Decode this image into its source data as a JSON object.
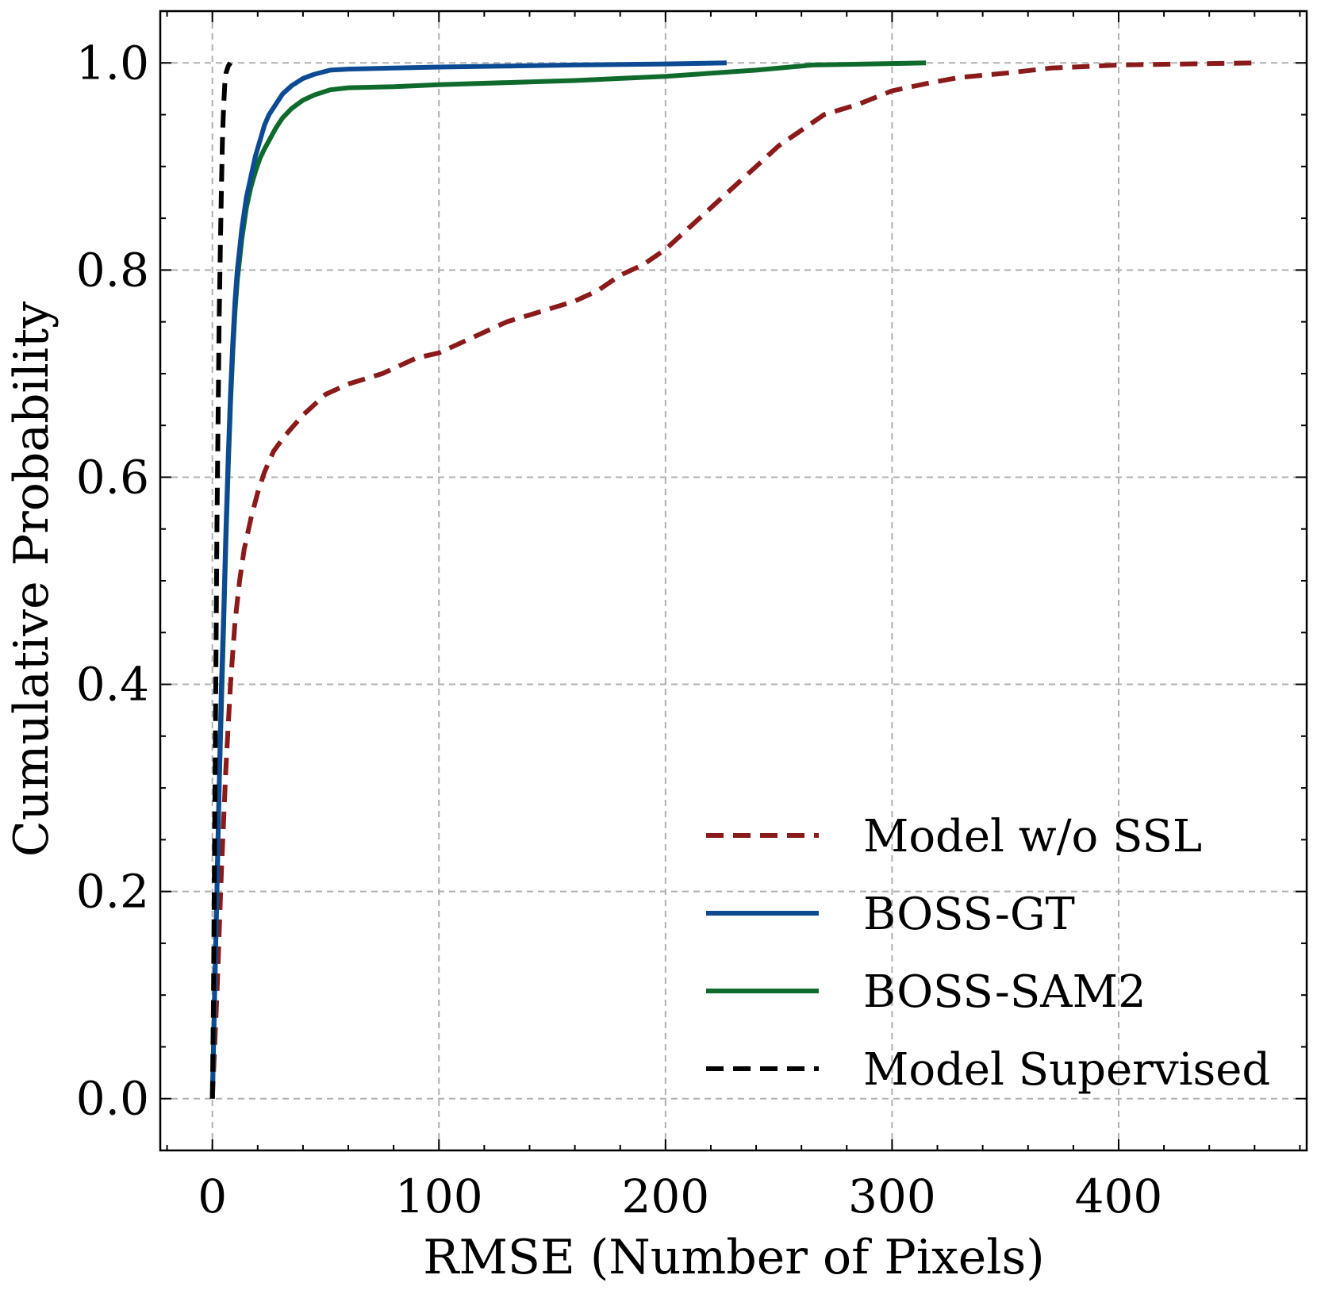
{
  "chart_data": {
    "type": "line",
    "title": "",
    "xlabel": "RMSE (Number of Pixels)",
    "ylabel": "Cumulative Probability",
    "xlim": [
      -23,
      483
    ],
    "ylim": [
      -0.05,
      1.05
    ],
    "x_ticks": [
      0,
      100,
      200,
      300,
      400
    ],
    "y_ticks": [
      0.0,
      0.2,
      0.4,
      0.6,
      0.8,
      1.0
    ],
    "x_tick_labels": [
      "0",
      "100",
      "200",
      "300",
      "400"
    ],
    "y_tick_labels": [
      "0.0",
      "0.2",
      "0.4",
      "0.6",
      "0.8",
      "1.0"
    ],
    "grid": true,
    "legend_position": "bottom-right",
    "series": [
      {
        "name": "Model w/o SSL",
        "color": "#8b1a1a",
        "dash": "dashed",
        "x": [
          0,
          2,
          4,
          6,
          8,
          10,
          12,
          14,
          17,
          20,
          23,
          27,
          32,
          40,
          50,
          60,
          75,
          90,
          100,
          115,
          130,
          145,
          160,
          170,
          180,
          190,
          200,
          210,
          220,
          230,
          240,
          250,
          260,
          270,
          285,
          300,
          315,
          330,
          350,
          370,
          400,
          430,
          460
        ],
        "values": [
          0.0,
          0.1,
          0.22,
          0.32,
          0.4,
          0.46,
          0.5,
          0.53,
          0.56,
          0.585,
          0.605,
          0.625,
          0.64,
          0.66,
          0.68,
          0.69,
          0.7,
          0.715,
          0.72,
          0.735,
          0.75,
          0.76,
          0.77,
          0.78,
          0.795,
          0.805,
          0.82,
          0.84,
          0.86,
          0.88,
          0.9,
          0.92,
          0.935,
          0.95,
          0.96,
          0.973,
          0.98,
          0.986,
          0.99,
          0.995,
          0.998,
          0.999,
          1.0
        ]
      },
      {
        "name": "BOSS-GT",
        "color": "#0d4a94",
        "dash": "solid",
        "x": [
          0,
          1,
          2,
          3,
          4,
          5,
          6,
          7,
          8,
          9,
          10,
          11,
          12,
          13,
          14,
          15,
          17,
          19,
          21,
          23,
          25,
          28,
          31,
          35,
          40,
          45,
          52,
          60,
          80,
          100,
          130,
          160,
          200,
          227
        ],
        "values": [
          0.0,
          0.1,
          0.2,
          0.3,
          0.4,
          0.47,
          0.55,
          0.62,
          0.68,
          0.73,
          0.77,
          0.8,
          0.82,
          0.84,
          0.855,
          0.87,
          0.89,
          0.91,
          0.925,
          0.94,
          0.95,
          0.96,
          0.97,
          0.978,
          0.985,
          0.989,
          0.993,
          0.994,
          0.995,
          0.996,
          0.997,
          0.998,
          0.999,
          1.0
        ]
      },
      {
        "name": "BOSS-SAM2",
        "color": "#0e6b2c",
        "dash": "solid",
        "x": [
          0,
          1,
          2,
          3,
          4,
          5,
          6,
          7,
          8,
          9,
          10,
          11,
          12,
          13,
          14,
          15,
          17,
          19,
          21,
          23,
          25,
          28,
          31,
          35,
          40,
          45,
          52,
          60,
          80,
          100,
          130,
          160,
          200,
          240,
          265,
          290,
          315
        ],
        "values": [
          0.0,
          0.1,
          0.2,
          0.3,
          0.38,
          0.46,
          0.54,
          0.61,
          0.67,
          0.72,
          0.76,
          0.79,
          0.81,
          0.83,
          0.845,
          0.86,
          0.88,
          0.895,
          0.908,
          0.917,
          0.925,
          0.937,
          0.947,
          0.956,
          0.964,
          0.969,
          0.974,
          0.976,
          0.977,
          0.979,
          0.981,
          0.983,
          0.987,
          0.993,
          0.998,
          0.999,
          1.0
        ]
      },
      {
        "name": "Model Supervised",
        "color": "#000000",
        "dash": "dashed",
        "x": [
          0,
          0.5,
          1,
          1.5,
          2,
          2.5,
          3,
          3.5,
          4,
          4.5,
          5,
          5.5,
          6,
          7,
          8
        ],
        "values": [
          0.0,
          0.1,
          0.25,
          0.4,
          0.55,
          0.65,
          0.75,
          0.82,
          0.88,
          0.93,
          0.96,
          0.98,
          0.99,
          0.997,
          1.0
        ]
      }
    ]
  }
}
